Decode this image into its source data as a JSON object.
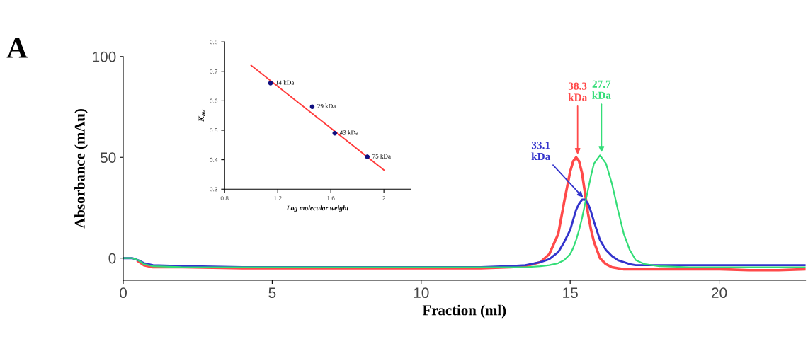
{
  "chart_data": [
    {
      "type": "line",
      "xlabel": "Fraction (ml)",
      "ylabel": "Absorbance (mAu)",
      "x": [
        0,
        0.3,
        0.5,
        0.7,
        1,
        2,
        4,
        6,
        8,
        10,
        12,
        13,
        13.5,
        14,
        14.3,
        14.6,
        14.8,
        15,
        15.1,
        15.2,
        15.3,
        15.4,
        15.5,
        15.6,
        15.7,
        15.8,
        16,
        16.2,
        16.4,
        16.6,
        16.8,
        17,
        17.2,
        17.5,
        18,
        19,
        20,
        21,
        22,
        22.9
      ],
      "series": [
        {
          "color": "#ff4a4a",
          "values": [
            null,
            null,
            -1.5,
            -3.5,
            -4.5,
            -4.5,
            -5,
            -5,
            -5,
            -5,
            -5,
            -4.5,
            -4,
            -2,
            2,
            12,
            28,
            43,
            48,
            50,
            48,
            42,
            32,
            22,
            14,
            8,
            0,
            -3,
            -4.5,
            -5,
            -5.5,
            -5.5,
            -5.5,
            -5.5,
            -5.5,
            -5.5,
            -5.5,
            -6,
            -6,
            -5.5
          ]
        },
        {
          "color": "#3333cc",
          "values": [
            0,
            0,
            -1,
            -2.5,
            -3.5,
            -4,
            -4.5,
            -4.5,
            -4.5,
            -4.5,
            -4.5,
            -4,
            -3.5,
            -2,
            -0.5,
            3,
            8,
            14,
            19,
            24,
            27,
            29,
            29,
            27,
            23,
            18,
            9,
            4,
            1,
            -1,
            -2,
            -3,
            -3.5,
            -3.5,
            -3.5,
            -3.5,
            -3.5,
            -3.5,
            -3.5,
            -3.5
          ]
        },
        {
          "color": "#33dd77",
          "values": [
            0,
            0,
            -1,
            -3,
            -4,
            -4.5,
            -4.5,
            -4.5,
            -4.5,
            -4.5,
            -4.5,
            -4.5,
            -4.5,
            -4,
            -3.5,
            -2.5,
            -1,
            2,
            5,
            9,
            14,
            20,
            27,
            34,
            41,
            47,
            51,
            47,
            37,
            24,
            12,
            4,
            -1,
            -3,
            -4,
            -4.5,
            -4.5,
            -4.5,
            -4.5,
            -4.5
          ]
        }
      ],
      "xlim": [
        0,
        22.9
      ],
      "xticks": [
        0,
        5,
        10,
        15,
        20
      ],
      "ylim": [
        -11,
        100
      ],
      "yticks": [
        0,
        50,
        100
      ],
      "grid": false,
      "legend": false,
      "marker": "none",
      "line_style": "solid",
      "annotations": [
        {
          "text": "38.3\nkDa",
          "x": 15.25,
          "y": 50
        },
        {
          "text": "33.1\nkDa",
          "x": 15.5,
          "y": 29
        },
        {
          "text": "27.7\nkDa",
          "x": 16.05,
          "y": 51
        },
        "A"
      ]
    },
    {
      "type": "scatter",
      "xlabel": "Log molecular weight",
      "ylabel": "K$_{av}$",
      "x": [
        1.146,
        1.46,
        1.63,
        1.875
      ],
      "series": [
        {
          "color": "#101080",
          "values": [
            0.66,
            0.58,
            0.49,
            0.41
          ]
        },
        {
          "type": "line",
          "color": "#ff3b3b",
          "x": [
            1.0,
            2.0
          ],
          "values": [
            0.72,
            0.365
          ]
        }
      ],
      "xlim": [
        0.8,
        2.2
      ],
      "xticks": [
        0.8,
        1.2,
        1.6,
        2
      ],
      "ylim": [
        0.3,
        0.8
      ],
      "yticks": [
        0.3,
        0.4,
        0.5,
        0.6,
        0.7,
        0.8
      ],
      "grid": false,
      "legend": false,
      "annotations": [
        {
          "text": "14 kDa",
          "x": 1.146,
          "y": 0.66
        },
        {
          "text": "29 kDa",
          "x": 1.46,
          "y": 0.58
        },
        {
          "text": "43 kDa",
          "x": 1.63,
          "y": 0.49
        },
        {
          "text": "75 kDa",
          "x": 1.875,
          "y": 0.41
        }
      ]
    }
  ]
}
